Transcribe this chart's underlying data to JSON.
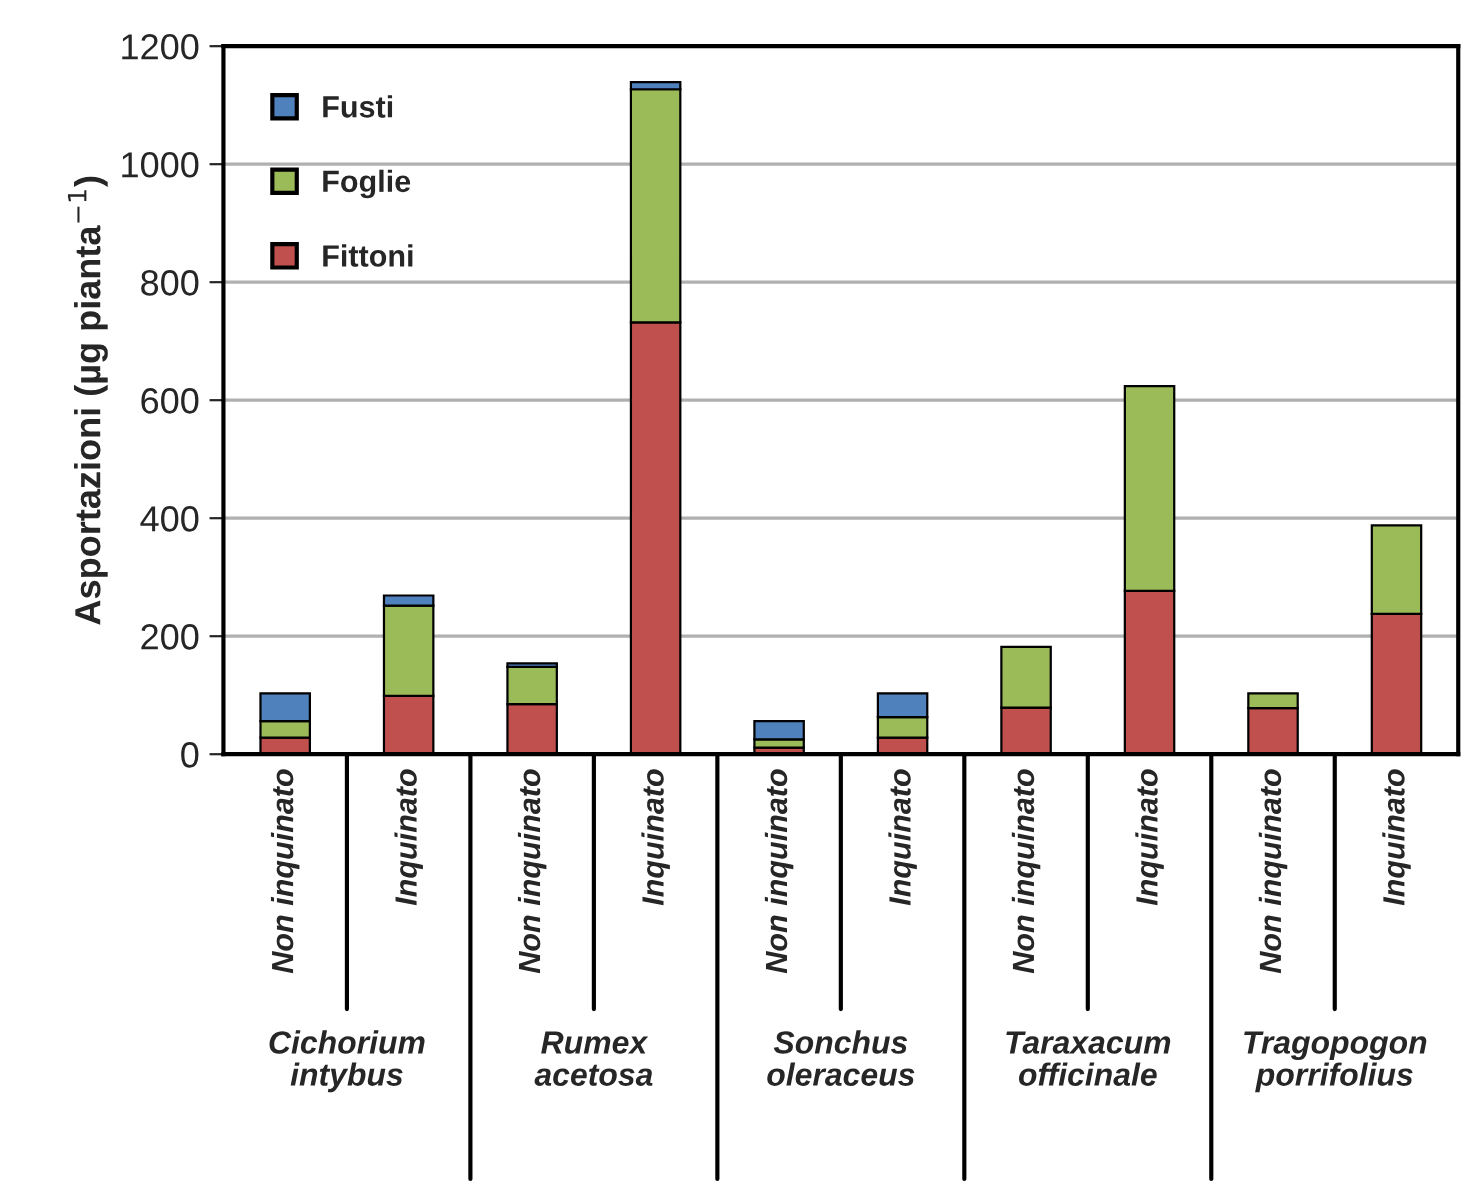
{
  "chart_data": {
    "type": "bar",
    "stacked": true,
    "ylabel": "Asportazioni (µg pianta$^{−1}$)",
    "categories": [
      "Non inquinato",
      "Inquinato",
      "Non inquinato",
      "Inquinato",
      "Non inquinato",
      "Inquinato",
      "Non inquinato",
      "Inquinato",
      "Non inquinato",
      "Inquinato"
    ],
    "series": [
      {
        "name": "Fittoni",
        "color": "#c0504d",
        "values": [
          28,
          99,
          85,
          732,
          11,
          28,
          79,
          277,
          78,
          238
        ]
      },
      {
        "name": "Foglie",
        "color": "#9bbb59",
        "values": [
          28,
          153,
          63,
          395,
          14,
          35,
          103,
          347,
          25,
          150
        ]
      },
      {
        "name": "Fusti",
        "color": "#4f81bd",
        "values": [
          47,
          17,
          6,
          12,
          31,
          40,
          null,
          null,
          null,
          null
        ]
      }
    ],
    "annotations": [
      "Cichorium intybus",
      "Rumex acetosa",
      "Sonchus oleraceus",
      "Taraxacum officinale",
      "Tragopogon porrifolius"
    ],
    "ylim": [
      0,
      1200
    ],
    "yticks": [
      0,
      200,
      400,
      600,
      800,
      1000,
      1200
    ],
    "grid": "y",
    "legend": "top left"
  }
}
